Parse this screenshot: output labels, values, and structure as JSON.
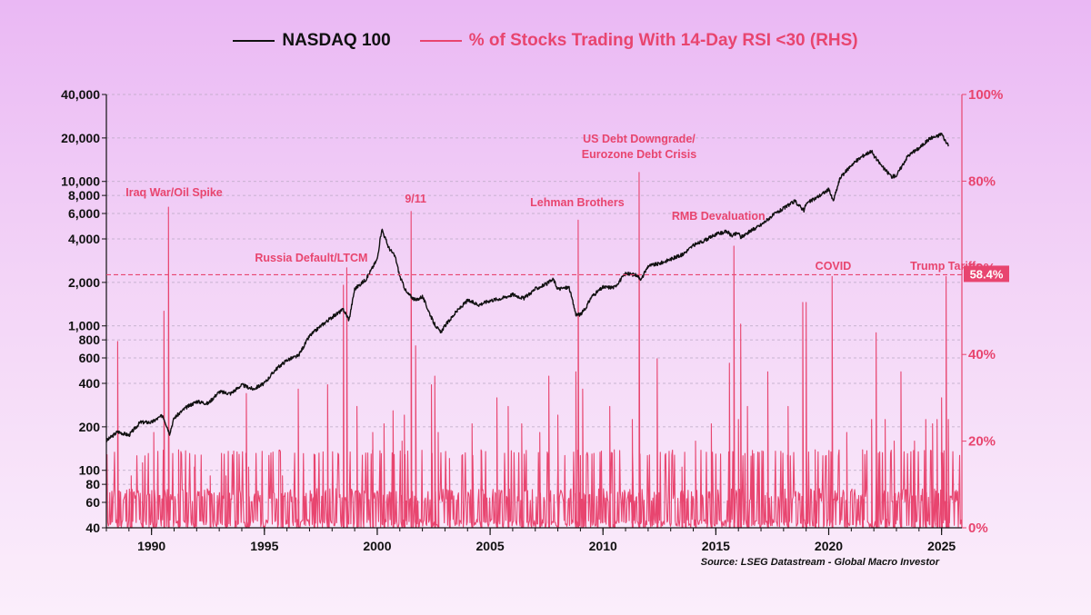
{
  "legend": {
    "series1": "NASDAQ 100",
    "series2": "% of Stocks Trading With 14-Day RSI <30 (RHS)"
  },
  "source": "Source: LSEG Datastream - Global Macro Investor",
  "colors": {
    "nasdaq": "#111111",
    "rsi": "#e8456f",
    "grid": "#b9a8c4"
  },
  "chart_data": {
    "type": "line",
    "left_axis": {
      "scale": "log",
      "range": [
        40,
        40000
      ],
      "ticks": [
        40,
        60,
        80,
        100,
        200,
        400,
        600,
        800,
        1000,
        2000,
        4000,
        6000,
        8000,
        10000,
        20000,
        40000
      ],
      "tick_labels": [
        "40",
        "60",
        "80",
        "100",
        "200",
        "400",
        "600",
        "800",
        "1,000",
        "2,000",
        "4,000",
        "6,000",
        "8,000",
        "10,000",
        "20,000",
        "40,000"
      ]
    },
    "right_axis": {
      "scale": "linear",
      "range": [
        0,
        100
      ],
      "ticks": [
        0,
        20,
        40,
        60,
        80,
        100
      ],
      "tick_labels": [
        "0%",
        "20%",
        "40%",
        "60%",
        "80%",
        "100%"
      ]
    },
    "x_axis": {
      "range": [
        1988,
        2025.9
      ],
      "ticks": [
        1990,
        1995,
        2000,
        2005,
        2010,
        2015,
        2020,
        2025
      ],
      "tick_labels": [
        "1990",
        "1995",
        "2000",
        "2005",
        "2010",
        "2015",
        "2020",
        "2025"
      ]
    },
    "grid": true,
    "series": [
      {
        "name": "NASDAQ 100",
        "axis": "left",
        "x": [
          1988.0,
          1988.5,
          1989.0,
          1989.5,
          1990.0,
          1990.5,
          1990.8,
          1991.0,
          1991.5,
          1992.0,
          1992.5,
          1993.0,
          1993.5,
          1994.0,
          1994.5,
          1995.0,
          1995.5,
          1996.0,
          1996.5,
          1997.0,
          1997.5,
          1998.0,
          1998.5,
          1998.75,
          1999.0,
          1999.5,
          2000.0,
          2000.2,
          2000.5,
          2000.8,
          2001.0,
          2001.3,
          2001.7,
          2002.0,
          2002.5,
          2002.8,
          2003.0,
          2003.5,
          2004.0,
          2004.5,
          2005.0,
          2005.5,
          2006.0,
          2006.5,
          2007.0,
          2007.5,
          2007.8,
          2008.0,
          2008.5,
          2008.8,
          2009.0,
          2009.2,
          2009.5,
          2010.0,
          2010.5,
          2011.0,
          2011.5,
          2011.7,
          2012.0,
          2012.5,
          2013.0,
          2013.5,
          2014.0,
          2014.5,
          2015.0,
          2015.5,
          2015.7,
          2016.0,
          2016.1,
          2016.5,
          2017.0,
          2017.5,
          2018.0,
          2018.5,
          2018.9,
          2019.0,
          2019.5,
          2020.0,
          2020.2,
          2020.5,
          2021.0,
          2021.5,
          2021.9,
          2022.0,
          2022.5,
          2022.8,
          2023.0,
          2023.5,
          2024.0,
          2024.5,
          2024.8,
          2025.0,
          2025.1,
          2025.3
        ],
        "values": [
          160,
          185,
          175,
          215,
          215,
          240,
          180,
          230,
          270,
          300,
          290,
          350,
          340,
          390,
          365,
          400,
          500,
          580,
          620,
          850,
          1000,
          1150,
          1300,
          1100,
          1800,
          2100,
          2900,
          4700,
          3500,
          3000,
          2200,
          1700,
          1500,
          1600,
          1050,
          900,
          1000,
          1250,
          1500,
          1400,
          1500,
          1550,
          1650,
          1550,
          1800,
          1950,
          2100,
          1800,
          1850,
          1200,
          1200,
          1300,
          1600,
          1850,
          1850,
          2300,
          2250,
          2100,
          2600,
          2700,
          2900,
          3100,
          3600,
          3900,
          4300,
          4500,
          4200,
          4400,
          4100,
          4500,
          5000,
          5800,
          6500,
          7300,
          6300,
          7000,
          7800,
          8800,
          7300,
          10500,
          13000,
          15000,
          16300,
          15000,
          12000,
          10800,
          11000,
          15000,
          17000,
          20000,
          20500,
          21500,
          20000,
          17500
        ]
      },
      {
        "name": "% of Stocks Trading With 14-Day RSI <30 (RHS)",
        "axis": "right",
        "baseline": 2,
        "spikes": {
          "x": [
            1988.5,
            1989.1,
            1989.6,
            1990.1,
            1990.55,
            1990.75,
            1991.2,
            1991.9,
            1992.6,
            1993.3,
            1994.2,
            1994.3,
            1995.8,
            1996.5,
            1997.2,
            1997.8,
            1998.5,
            1998.65,
            1999.1,
            1999.8,
            2000.3,
            2000.7,
            2001.1,
            2001.2,
            2001.5,
            2001.7,
            2002.4,
            2002.55,
            2002.7,
            2003.2,
            2004.2,
            2004.6,
            2005.3,
            2005.8,
            2006.4,
            2007.2,
            2007.6,
            2008.0,
            2008.8,
            2008.9,
            2009.1,
            2010.3,
            2010.5,
            2011.3,
            2011.6,
            2012.4,
            2013.5,
            2014.1,
            2014.8,
            2015.6,
            2015.8,
            2016.0,
            2016.1,
            2016.4,
            2017.3,
            2018.2,
            2018.85,
            2019.0,
            2019.4,
            2020.15,
            2020.8,
            2021.5,
            2021.9,
            2022.1,
            2022.5,
            2022.9,
            2023.2,
            2023.8,
            2024.3,
            2024.6,
            2024.8,
            2025.0,
            2025.2,
            2025.3
          ],
          "values": [
            43,
            12,
            15,
            22,
            50,
            74,
            18,
            14,
            12,
            12,
            31,
            14,
            12,
            32,
            17,
            33,
            56,
            60,
            28,
            22,
            24,
            27,
            20,
            26,
            73,
            42,
            33,
            35,
            22,
            16,
            24,
            18,
            30,
            28,
            24,
            22,
            35,
            26,
            36,
            71,
            32,
            28,
            18,
            25,
            82,
            39,
            14,
            20,
            24,
            38,
            65,
            25,
            47,
            28,
            36,
            28,
            52,
            52,
            18,
            58,
            22,
            18,
            25,
            45,
            25,
            20,
            36,
            20,
            25,
            24,
            25,
            30,
            58,
            25
          ]
        }
      }
    ],
    "reference_line": {
      "value": 58.4,
      "label": "58.4%",
      "axis": "right"
    },
    "annotations": [
      {
        "text": "Iraq War/Oil Spike",
        "x": 1990.8
      },
      {
        "text": "Russia Default/LTCM",
        "x": 1998.65
      },
      {
        "text": "9/11",
        "x": 2001.7
      },
      {
        "text": "Lehman Brothers",
        "x": 2008.9
      },
      {
        "text": "US Debt Downgrade/",
        "x": 2011.6
      },
      {
        "text": "Eurozone Debt Crisis",
        "x": 2011.6
      },
      {
        "text": "RMB Devaluation",
        "x": 2015.8
      },
      {
        "text": "COVID",
        "x": 2020.2
      },
      {
        "text": "Trump Tariffs",
        "x": 2025.2
      }
    ]
  }
}
